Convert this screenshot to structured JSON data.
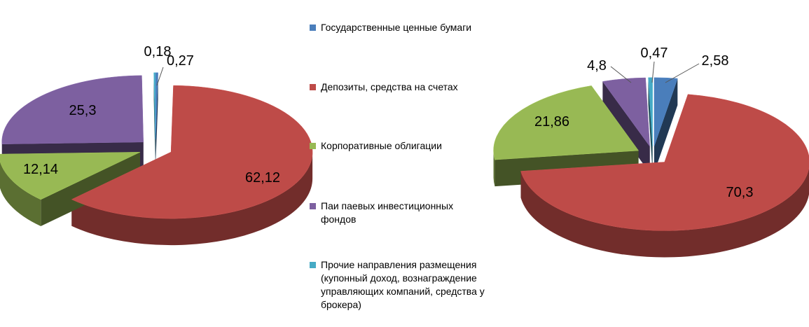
{
  "legend": {
    "items": [
      {
        "label": "Государственные  ценные бумаги",
        "color": "#4a7ebb"
      },
      {
        "label": "Депозиты, средства на счетах",
        "color": "#be4b48"
      },
      {
        "label": "Корпоративные  облигации",
        "color": "#98b954"
      },
      {
        "label": "Паи паевых инвестиционных фондов",
        "color": "#7d60a0"
      },
      {
        "label": "Прочие направления размещения (купонный доход, вознаграждение управляющих компаний,  средства у брокера)",
        "color": "#46aac5"
      }
    ]
  },
  "chart_data": [
    {
      "type": "pie",
      "style": "3d-exploded",
      "categories": [
        "Государственные  ценные бумаги",
        "Депозиты, средства на счетах",
        "Корпоративные  облигации",
        "Паи паевых инвестиционных фондов",
        "Прочие направления размещения (купонный доход, вознаграждение управляющих компаний,  средства у брокера)"
      ],
      "values": [
        0.27,
        62.12,
        12.14,
        25.3,
        0.18
      ],
      "data_labels": [
        "0,27",
        "62,12",
        "12,14",
        "25,3",
        "0,18"
      ],
      "title": "",
      "legend_position": "center"
    },
    {
      "type": "pie",
      "style": "3d-exploded",
      "categories": [
        "Государственные  ценные бумаги",
        "Депозиты, средства на счетах",
        "Корпоративные  облигации",
        "Паи паевых инвестиционных фондов",
        "Прочие направления размещения (купонный доход, вознаграждение управляющих компаний,  средства у брокера)"
      ],
      "values": [
        2.58,
        70.3,
        21.86,
        4.8,
        0.47
      ],
      "data_labels": [
        "2,58",
        "70,3",
        "21,86",
        "4,8",
        "0,47"
      ],
      "title": "",
      "legend_position": "center"
    }
  ]
}
